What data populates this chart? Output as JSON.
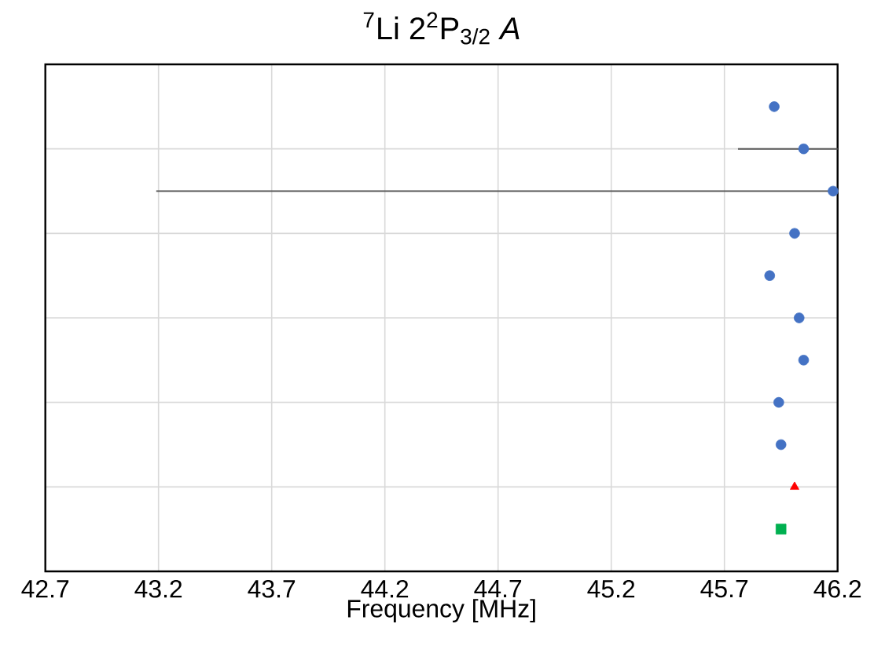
{
  "chart_data": {
    "type": "scatter",
    "title": "$^{7}$Li 2$^{2}$P$_{3/2}$ *A*",
    "xlabel": "Frequency [MHz]",
    "orientation": "horizontal",
    "categories": [
      null,
      null,
      null,
      null,
      null,
      null,
      null,
      null,
      null,
      null,
      null
    ],
    "series": [
      {
        "color": "#4472c4",
        "marker": "circle",
        "values": [
          45.92,
          46.05,
          46.18,
          46.01,
          45.9,
          46.03,
          46.05,
          45.94,
          45.95,
          null,
          null
        ],
        "errors": [
          null,
          [
            45.76,
            46.2
          ],
          [
            43.19,
            46.2
          ],
          null,
          null,
          null,
          null,
          null,
          null,
          null,
          null
        ]
      },
      {
        "color": "#ff0000",
        "marker": "triangle",
        "values": [
          null,
          null,
          null,
          null,
          null,
          null,
          null,
          null,
          null,
          46.01,
          null
        ]
      },
      {
        "color": "#00b050",
        "marker": "square",
        "values": [
          null,
          null,
          null,
          null,
          null,
          null,
          null,
          null,
          null,
          null,
          45.95
        ]
      }
    ],
    "xlim": [
      42.7,
      46.2
    ],
    "xticks": [
      42.7,
      43.2,
      43.7,
      44.2,
      44.7,
      45.2,
      45.7,
      46.2
    ],
    "grid": true
  }
}
